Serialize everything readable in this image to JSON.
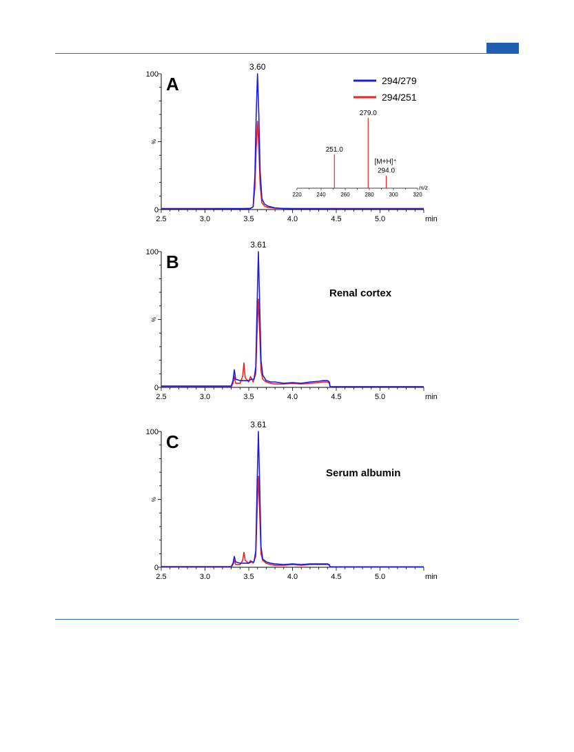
{
  "page": {
    "accent": "#1f5fb0"
  },
  "chart_data": [
    {
      "type": "line",
      "panel": "A",
      "xlabel": "min",
      "ylabel": "%",
      "xlim": [
        2.5,
        5.5
      ],
      "ylim": [
        0,
        100
      ],
      "xticks": [
        "2.5",
        "3.0",
        "3.5",
        "4.0",
        "4.5",
        "5.0"
      ],
      "yticks": [
        "0",
        "100"
      ],
      "peak_label": "3.60",
      "peak_x": 3.6,
      "sample": "",
      "legend": [
        {
          "name": "294/279",
          "color": "#1a1ae6"
        },
        {
          "name": "294/251",
          "color": "#ee2020"
        }
      ],
      "series": [
        {
          "name": "294/279",
          "color": "#1a1ae6",
          "x": [
            2.5,
            3.0,
            3.3,
            3.45,
            3.52,
            3.55,
            3.57,
            3.585,
            3.6,
            3.615,
            3.63,
            3.65,
            3.68,
            3.72,
            3.8,
            3.9,
            4.0,
            4.5,
            5.0,
            5.5
          ],
          "y": [
            0.5,
            0.5,
            0.6,
            0.6,
            0.8,
            2,
            25,
            70,
            100,
            70,
            28,
            8,
            4,
            2.5,
            1.2,
            0.8,
            0.6,
            0.5,
            0.5,
            0.5
          ]
        },
        {
          "name": "294/251",
          "color": "#ee2020",
          "x": [
            2.5,
            3.0,
            3.3,
            3.45,
            3.52,
            3.55,
            3.57,
            3.585,
            3.6,
            3.615,
            3.63,
            3.65,
            3.68,
            3.72,
            3.8,
            3.9,
            4.0,
            4.5,
            5.0,
            5.5
          ],
          "y": [
            0.8,
            0.8,
            0.8,
            0.8,
            1,
            2,
            16,
            45,
            65,
            45,
            18,
            5,
            2.5,
            1.5,
            1,
            0.8,
            0.8,
            0.8,
            0.8,
            0.8
          ]
        }
      ],
      "inset": {
        "xlabel": "m/z",
        "xlim": [
          220,
          320
        ],
        "xticks": [
          "220",
          "240",
          "260",
          "280",
          "300",
          "320"
        ],
        "peaks": [
          {
            "mz": 251.0,
            "rel": 48,
            "label": "251.0"
          },
          {
            "mz": 279.0,
            "rel": 100,
            "label": "279.0"
          },
          {
            "mz": 294.0,
            "rel": 18,
            "label": "294.0"
          }
        ],
        "annotation": "[M+H]⁺"
      }
    },
    {
      "type": "line",
      "panel": "B",
      "xlabel": "min",
      "ylabel": "%",
      "xlim": [
        2.5,
        5.5
      ],
      "ylim": [
        0,
        100
      ],
      "xticks": [
        "2.5",
        "3.0",
        "3.5",
        "4.0",
        "4.5",
        "5.0"
      ],
      "yticks": [
        "0",
        "100"
      ],
      "peak_label": "3.61",
      "peak_x": 3.61,
      "sample": "Renal cortex",
      "series": [
        {
          "name": "294/279",
          "color": "#1a1ae6",
          "x": [
            2.5,
            3.0,
            3.3,
            3.32,
            3.335,
            3.35,
            3.4,
            3.45,
            3.5,
            3.53,
            3.56,
            3.58,
            3.595,
            3.61,
            3.625,
            3.64,
            3.66,
            3.7,
            3.75,
            3.8,
            3.9,
            4.0,
            4.1,
            4.2,
            4.3,
            4.35,
            4.4,
            4.42,
            4.43,
            4.5,
            5.0,
            5.5
          ],
          "y": [
            1,
            1,
            1,
            5,
            13,
            6,
            5,
            5,
            5,
            6,
            6,
            15,
            60,
            100,
            60,
            20,
            9,
            5,
            4,
            4,
            3,
            3.5,
            3,
            4,
            4.5,
            5,
            5,
            4,
            0.5,
            0.5,
            0.5,
            0.5
          ]
        },
        {
          "name": "294/251",
          "color": "#ee2020",
          "x": [
            2.5,
            3.0,
            3.3,
            3.32,
            3.335,
            3.35,
            3.4,
            3.43,
            3.445,
            3.46,
            3.5,
            3.52,
            3.55,
            3.58,
            3.595,
            3.61,
            3.625,
            3.64,
            3.66,
            3.7,
            3.75,
            3.8,
            3.9,
            4.0,
            4.1,
            4.2,
            4.3,
            4.35,
            4.4,
            4.42,
            4.43,
            4.5,
            5.0,
            5.5
          ],
          "y": [
            0.5,
            0.5,
            0.5,
            3,
            8,
            3,
            3,
            8,
            18,
            7,
            4,
            8,
            4,
            10,
            40,
            65,
            40,
            12,
            6,
            4,
            3,
            2.5,
            2.5,
            3,
            2.5,
            3,
            3.5,
            4,
            4,
            3,
            0.5,
            0.5,
            0.5,
            0.5
          ]
        }
      ]
    },
    {
      "type": "line",
      "panel": "C",
      "xlabel": "min",
      "ylabel": "%",
      "xlim": [
        2.5,
        5.5
      ],
      "ylim": [
        0,
        100
      ],
      "xticks": [
        "2.5",
        "3.0",
        "3.5",
        "4.0",
        "4.5",
        "5.0"
      ],
      "yticks": [
        "0",
        "100"
      ],
      "peak_label": "3.61",
      "peak_x": 3.61,
      "sample": "Serum albumin",
      "series": [
        {
          "name": "294/279",
          "color": "#1a1ae6",
          "x": [
            2.5,
            3.0,
            3.3,
            3.32,
            3.335,
            3.35,
            3.4,
            3.45,
            3.5,
            3.53,
            3.56,
            3.58,
            3.595,
            3.61,
            3.625,
            3.64,
            3.66,
            3.7,
            3.75,
            3.8,
            3.9,
            4.0,
            4.1,
            4.2,
            4.3,
            4.35,
            4.4,
            4.42,
            4.43,
            4.5,
            5.0,
            5.5
          ],
          "y": [
            0.5,
            0.5,
            0.5,
            3,
            8,
            4,
            3,
            3,
            3,
            4,
            4,
            12,
            60,
            100,
            60,
            15,
            6,
            4,
            3,
            2.5,
            2,
            2.5,
            2,
            2.5,
            2.5,
            2.5,
            2.5,
            2,
            0.3,
            0.3,
            0.3,
            0.3
          ]
        },
        {
          "name": "294/251",
          "color": "#ee2020",
          "x": [
            2.5,
            3.0,
            3.3,
            3.32,
            3.335,
            3.35,
            3.4,
            3.43,
            3.445,
            3.46,
            3.5,
            3.52,
            3.55,
            3.58,
            3.595,
            3.61,
            3.625,
            3.64,
            3.66,
            3.7,
            3.75,
            3.8,
            3.9,
            4.0,
            4.1,
            4.2,
            4.3,
            4.35,
            4.4,
            4.42,
            4.43,
            4.5,
            5.0,
            5.5
          ],
          "y": [
            0.3,
            0.3,
            0.3,
            2,
            5,
            2,
            2,
            5,
            11,
            5,
            3,
            5,
            3,
            8,
            40,
            67,
            40,
            10,
            5,
            3,
            2,
            1.5,
            1.5,
            2,
            1.5,
            2,
            2,
            2,
            2,
            1.5,
            0.3,
            0.3,
            0.3,
            0.3
          ]
        }
      ]
    }
  ]
}
